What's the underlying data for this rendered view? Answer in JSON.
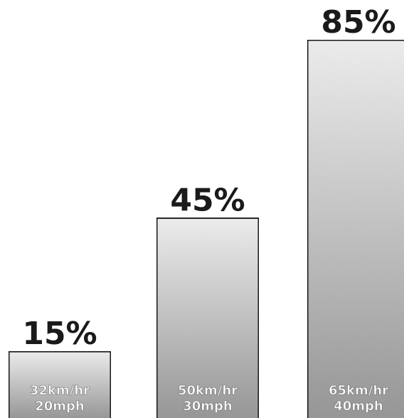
{
  "chart_data": {
    "type": "bar",
    "categories": [
      "32km/hr 20mph",
      "50km/hr 30mph",
      "65km/hr 40mph"
    ],
    "category_lines": [
      [
        "32km/hr",
        "20mph"
      ],
      [
        "50km/hr",
        "30mph"
      ],
      [
        "65km/hr",
        "40mph"
      ]
    ],
    "values": [
      15,
      45,
      85
    ],
    "value_labels": [
      "15%",
      "45%",
      "85%"
    ],
    "title": "",
    "xlabel": "",
    "ylabel": "",
    "ylim": [
      0,
      100
    ],
    "grid": false,
    "legend": "none"
  },
  "colors": {
    "bar_top": "#f2f2f2",
    "bar_bottom": "#9a9a9a",
    "bar_border": "#1a1a1a",
    "value_text": "#1a1a1a",
    "bar_text": "#ffffff"
  }
}
